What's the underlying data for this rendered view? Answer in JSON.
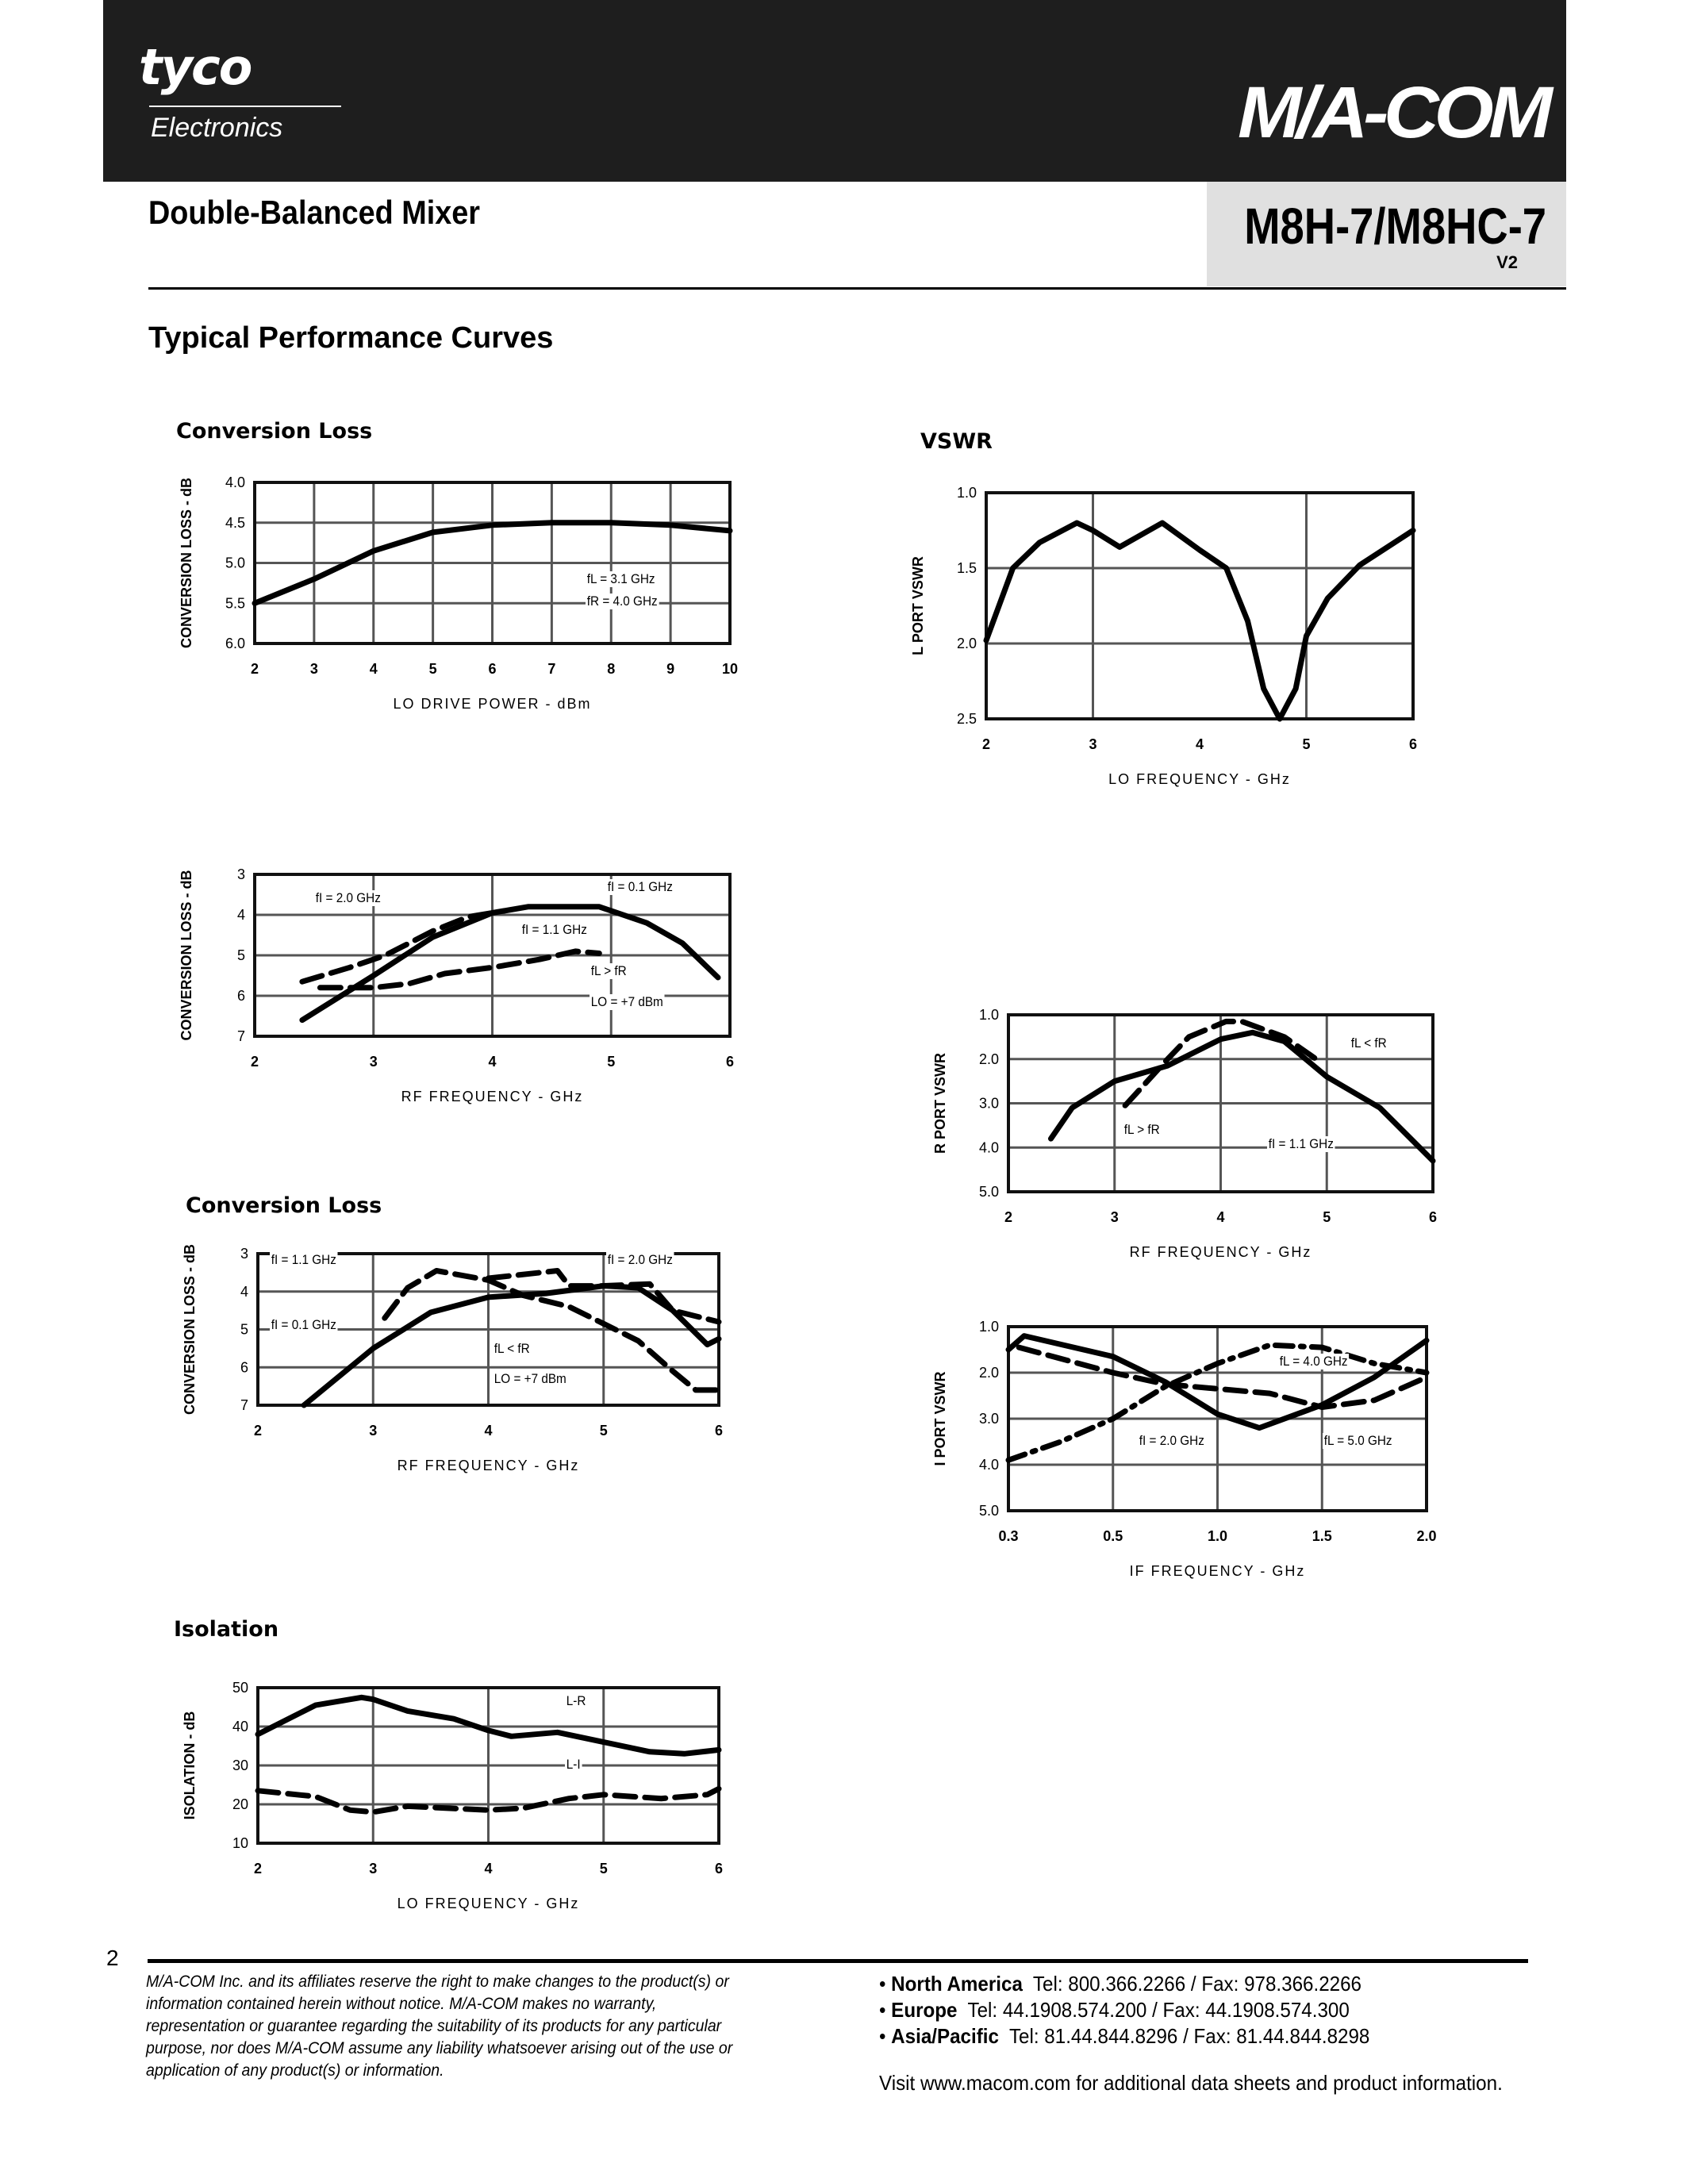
{
  "header": {
    "brand_left": "tyco",
    "brand_left_sub": "Electronics",
    "brand_right": "M/A-COM",
    "product_type": "Double-Balanced Mixer",
    "part_number": "M8H-7/M8HC-7",
    "revision": "V2"
  },
  "section_title": "Typical Performance Curves",
  "chart_data": [
    {
      "type": "line",
      "title": "Conversion Loss",
      "xlabel": "LO DRIVE POWER - dBm",
      "ylabel": "CONVERSION LOSS - dB",
      "xticks": [
        2,
        3,
        4,
        5,
        6,
        7,
        8,
        9,
        10
      ],
      "xtick_labels": [
        "2",
        "3",
        "4",
        "5",
        "6",
        "7",
        "8",
        "9",
        "10"
      ],
      "yticks": [
        4.0,
        4.5,
        5.0,
        5.5,
        6.0
      ],
      "ytick_labels": [
        "4.0",
        "4.5",
        "5.0",
        "5.5",
        "6.0"
      ],
      "y_inverted": true,
      "grid": true,
      "annotations": [
        "fL = 3.1 GHz",
        "fR = 4.0 GHz"
      ],
      "series": [
        {
          "style": "solid",
          "x": [
            2,
            3,
            4,
            5,
            6,
            7,
            8,
            9,
            10
          ],
          "y": [
            5.5,
            5.2,
            4.85,
            4.62,
            4.53,
            4.5,
            4.5,
            4.53,
            4.6
          ]
        }
      ]
    },
    {
      "type": "line",
      "title": "VSWR",
      "xlabel": "LO FREQUENCY - GHz",
      "ylabel": "L PORT VSWR",
      "xticks": [
        2,
        3,
        4,
        5,
        6
      ],
      "xtick_labels": [
        "2",
        "3",
        "4",
        "5",
        "6"
      ],
      "xgrid": [
        3,
        5
      ],
      "yticks": [
        1.0,
        1.5,
        2.0,
        2.5
      ],
      "ytick_labels": [
        "1.0",
        "1.5",
        "2.0",
        "2.5"
      ],
      "y_inverted": true,
      "grid": true,
      "annotations": [],
      "series": [
        {
          "style": "solid",
          "x": [
            2,
            2.25,
            2.5,
            2.85,
            3.0,
            3.25,
            3.65,
            4.0,
            4.25,
            4.45,
            4.6,
            4.75,
            4.9,
            5.0,
            5.2,
            5.5,
            6.0
          ],
          "y": [
            1.98,
            1.5,
            1.33,
            1.2,
            1.25,
            1.36,
            1.2,
            1.38,
            1.5,
            1.85,
            2.3,
            2.5,
            2.3,
            1.95,
            1.7,
            1.48,
            1.25
          ]
        }
      ]
    },
    {
      "type": "line",
      "title": "",
      "xlabel": "RF FREQUENCY - GHz",
      "ylabel": "CONVERSION LOSS - dB",
      "xticks": [
        2,
        3,
        4,
        5,
        6
      ],
      "xtick_labels": [
        "2",
        "3",
        "4",
        "5",
        "6"
      ],
      "yticks": [
        3,
        4,
        5,
        6,
        7
      ],
      "ytick_labels": [
        "3",
        "4",
        "5",
        "6",
        "7"
      ],
      "y_inverted": true,
      "grid": true,
      "annotations": [
        "fI = 2.0 GHz",
        "fI = 0.1 GHz",
        "fI = 1.1 GHz",
        "fL > fR",
        "LO = +7 dBm"
      ],
      "series": [
        {
          "name": "fI = 0.1 GHz",
          "style": "solid",
          "x": [
            2.4,
            3.0,
            3.5,
            4.0,
            4.3,
            4.9,
            5.3,
            5.6,
            5.9
          ],
          "y": [
            6.6,
            5.5,
            4.55,
            3.95,
            3.8,
            3.8,
            4.2,
            4.7,
            5.55
          ]
        },
        {
          "name": "fI = 2.0 GHz",
          "style": "dashed",
          "x": [
            2.4,
            2.8,
            3.1,
            3.5,
            3.8,
            4.0
          ],
          "y": [
            5.65,
            5.3,
            5.0,
            4.4,
            4.05,
            3.95
          ]
        },
        {
          "name": "fI = 1.1 GHz",
          "style": "dashed",
          "x": [
            2.55,
            3.0,
            3.3,
            3.6,
            4.0,
            4.4,
            4.7,
            4.9
          ],
          "y": [
            5.8,
            5.8,
            5.7,
            5.45,
            5.3,
            5.1,
            4.9,
            4.95
          ]
        }
      ]
    },
    {
      "type": "line",
      "title": "Conversion Loss",
      "xlabel": "RF FREQUENCY - GHz",
      "ylabel": "CONVERSION LOSS - dB",
      "xticks": [
        2,
        3,
        4,
        5,
        6
      ],
      "xtick_labels": [
        "2",
        "3",
        "4",
        "5",
        "6"
      ],
      "yticks": [
        3,
        4,
        5,
        6,
        7
      ],
      "ytick_labels": [
        "3",
        "4",
        "5",
        "6",
        "7"
      ],
      "y_inverted": true,
      "grid": true,
      "annotations": [
        "fI = 1.1 GHz",
        "fI = 2.0 GHz",
        "fI = 0.1 GHz",
        "fL < fR",
        "LO = +7 dBm"
      ],
      "series": [
        {
          "name": "fI = 0.1 GHz",
          "style": "solid",
          "x": [
            2.4,
            2.8,
            3.0,
            3.5,
            4.0,
            4.5,
            5.0,
            5.3,
            5.6,
            5.9,
            6.0
          ],
          "y": [
            7.0,
            6.0,
            5.5,
            4.55,
            4.15,
            4.05,
            3.85,
            3.9,
            4.5,
            5.4,
            5.25
          ]
        },
        {
          "name": "fI = 1.1 GHz",
          "style": "dashed",
          "x": [
            3.1,
            3.3,
            3.55,
            4.0,
            4.3,
            4.7,
            5.0,
            5.3,
            5.6,
            5.8,
            6.0
          ],
          "y": [
            4.7,
            3.9,
            3.45,
            3.7,
            4.1,
            4.4,
            4.85,
            5.3,
            6.1,
            6.6,
            6.6
          ]
        },
        {
          "name": "fI = 2.0 GHz",
          "style": "dashed",
          "x": [
            4.0,
            4.6,
            4.7,
            5.0,
            5.4,
            5.6,
            6.0
          ],
          "y": [
            3.65,
            3.45,
            3.85,
            3.85,
            3.8,
            4.5,
            4.8
          ]
        }
      ]
    },
    {
      "type": "line",
      "title": "",
      "xlabel": "RF FREQUENCY - GHz",
      "ylabel": "R PORT VSWR",
      "xticks": [
        2,
        3,
        4,
        5,
        6
      ],
      "xtick_labels": [
        "2",
        "3",
        "4",
        "5",
        "6"
      ],
      "yticks": [
        1.0,
        2.0,
        3.0,
        4.0,
        5.0
      ],
      "ytick_labels": [
        "1.0",
        "2.0",
        "3.0",
        "4.0",
        "5.0"
      ],
      "y_inverted": true,
      "grid": true,
      "annotations": [
        "fL < fR",
        "fL > fR",
        "fI = 1.1 GHz"
      ],
      "series": [
        {
          "name": "fL < fR",
          "style": "solid",
          "x": [
            2.4,
            2.6,
            3.0,
            3.5,
            4.0,
            4.3,
            4.6,
            5.0,
            5.5,
            6.0
          ],
          "y": [
            3.8,
            3.1,
            2.5,
            2.15,
            1.55,
            1.4,
            1.6,
            2.4,
            3.1,
            4.3
          ]
        },
        {
          "name": "fL > fR",
          "style": "dashed",
          "x": [
            3.1,
            3.5,
            3.7,
            4.05,
            4.2,
            4.6,
            4.9
          ],
          "y": [
            3.05,
            2.0,
            1.5,
            1.15,
            1.15,
            1.5,
            2.0
          ]
        }
      ]
    },
    {
      "type": "line",
      "title": "",
      "xlabel": "IF FREQUENCY - GHz",
      "ylabel": "I PORT VSWR",
      "xticks": [
        0.3,
        0.5,
        1.0,
        1.5,
        2.0
      ],
      "xtick_labels": [
        "0.3",
        "0.5",
        "1.0",
        "1.5",
        "2.0"
      ],
      "yticks": [
        1.0,
        2.0,
        3.0,
        4.0,
        5.0
      ],
      "ytick_labels": [
        "1.0",
        "2.0",
        "3.0",
        "4.0",
        "5.0"
      ],
      "y_inverted": true,
      "grid": true,
      "annotations": [
        "fL = 4.0 GHz",
        "fI = 2.0 GHz",
        "fL = 5.0 GHz"
      ],
      "series": [
        {
          "name": "fL = 5.0 GHz",
          "style": "solid",
          "x": [
            0.3,
            0.33,
            0.5,
            0.75,
            1.0,
            1.2,
            1.5,
            1.75,
            2.0
          ],
          "y": [
            1.5,
            1.2,
            1.65,
            2.2,
            2.9,
            3.2,
            2.7,
            2.1,
            1.3
          ]
        },
        {
          "name": "fI = 2.0 GHz",
          "style": "dashed",
          "x": [
            0.32,
            0.5,
            0.75,
            1.0,
            1.25,
            1.5,
            1.75,
            2.0
          ],
          "y": [
            1.45,
            2.0,
            2.25,
            2.35,
            2.45,
            2.75,
            2.6,
            2.1
          ]
        },
        {
          "name": "fL = 4.0 GHz",
          "style": "dashdot",
          "x": [
            0.3,
            0.4,
            0.5,
            0.75,
            1.0,
            1.25,
            1.5,
            1.75,
            2.0
          ],
          "y": [
            3.9,
            3.5,
            3.0,
            2.3,
            1.8,
            1.4,
            1.45,
            1.8,
            2.0
          ]
        }
      ]
    },
    {
      "type": "line",
      "title": "Isolation",
      "xlabel": "LO FREQUENCY - GHz",
      "ylabel": "ISOLATION - dB",
      "xticks": [
        2,
        3,
        4,
        5,
        6
      ],
      "xtick_labels": [
        "2",
        "3",
        "4",
        "5",
        "6"
      ],
      "yticks": [
        50,
        40,
        30,
        20,
        10
      ],
      "ytick_labels": [
        "50",
        "40",
        "30",
        "20",
        "10"
      ],
      "y_inverted": false,
      "grid": true,
      "annotations": [
        "L-R",
        "L-I"
      ],
      "series": [
        {
          "name": "L-R",
          "style": "solid",
          "x": [
            2,
            2.5,
            2.9,
            3.0,
            3.3,
            3.7,
            4.0,
            4.2,
            4.6,
            5.0,
            5.4,
            5.7,
            6.0
          ],
          "y": [
            38,
            45.5,
            47.5,
            47,
            44,
            42,
            39,
            37.5,
            38.5,
            36,
            33.5,
            33,
            34
          ]
        },
        {
          "name": "L-I",
          "style": "dashed",
          "x": [
            2,
            2.5,
            2.8,
            3.0,
            3.3,
            4.0,
            4.3,
            4.7,
            5.0,
            5.5,
            5.9,
            6.0
          ],
          "y": [
            23.5,
            22,
            18.5,
            18,
            19.5,
            18.5,
            19,
            21.5,
            22.5,
            21.5,
            22.5,
            24
          ]
        }
      ]
    }
  ],
  "footer": {
    "page_number": "2",
    "disclaimer": "M/A-COM Inc. and its affiliates reserve the right to make changes to the product(s) or information contained herein without notice. M/A-COM makes no warranty, representation or guarantee regarding the suitability of its products for any particular purpose, nor does M/A-COM assume any liability whatsoever arising out of the use or application of any product(s) or information.",
    "contacts": [
      {
        "region": "North America",
        "details": "Tel: 800.366.2266 / Fax: 978.366.2266"
      },
      {
        "region": "Europe",
        "details": "Tel: 44.1908.574.200 / Fax: 44.1908.574.300"
      },
      {
        "region": "Asia/Pacific",
        "details": "Tel: 81.44.844.8296 / Fax: 81.44.844.8298"
      }
    ],
    "visit": "Visit www.macom.com for additional data sheets and product information."
  }
}
